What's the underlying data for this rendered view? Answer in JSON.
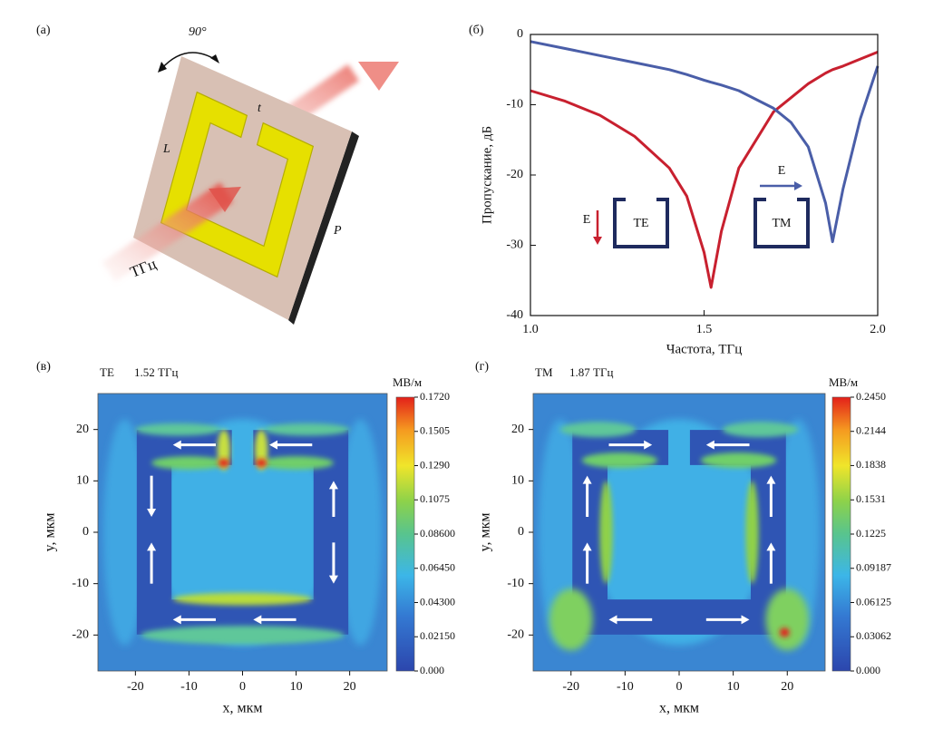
{
  "diagram": {
    "label": "(а)",
    "angle": "90°",
    "length_label": "L",
    "gap_label": "t",
    "period_label": "P",
    "source_label": "ТГц"
  },
  "chart_data": [
    {
      "type": "line",
      "label": "(б)",
      "x": [
        1.0,
        1.1,
        1.2,
        1.3,
        1.4,
        1.45,
        1.5,
        1.52,
        1.55,
        1.6,
        1.7,
        1.75,
        1.8,
        1.85,
        1.87,
        1.9,
        1.95,
        2.0
      ],
      "series": [
        {
          "name": "TE",
          "color": "#c8202f",
          "values": [
            -8,
            -9.5,
            -11.5,
            -14.5,
            -19,
            -23,
            -31,
            -36,
            -28,
            -19,
            -11,
            -9,
            -7,
            -5.5,
            -5,
            -4.5,
            -3.5,
            -2.5
          ]
        },
        {
          "name": "TM",
          "color": "#4a5ea8",
          "values": [
            -1,
            -2,
            -3,
            -4,
            -5,
            -5.7,
            -6.5,
            -6.8,
            -7.2,
            -8,
            -10.5,
            -12.5,
            -16,
            -24,
            -29.5,
            -22,
            -12,
            -4.5
          ]
        }
      ],
      "xlim": [
        1,
        2
      ],
      "ylim": [
        -40,
        0
      ],
      "xticks": [
        {
          "value": 1,
          "label": "1.0"
        },
        {
          "value": 1.5,
          "label": "1.5"
        },
        {
          "value": 2,
          "label": "2.0"
        }
      ],
      "yticks": [
        0,
        -10,
        -20,
        -30,
        -40
      ],
      "xlabel": "Частота, ТГц",
      "ylabel": "Пропускание, дБ",
      "field_label": "E"
    },
    {
      "type": "heatmap",
      "label": "(в)",
      "mode": "TE",
      "frequency": "1.52 ТГц",
      "unit": "МВ/м",
      "xlim": [
        -27,
        27
      ],
      "ylim": [
        -27,
        27
      ],
      "xticks": [
        -20,
        -10,
        0,
        10,
        20
      ],
      "yticks": [
        -20,
        -10,
        0,
        10,
        20
      ],
      "xlabel": "x, мкм",
      "ylabel": "y, мкм",
      "zlim": [
        0,
        0.172
      ],
      "zticks": [
        {
          "value": 0,
          "label": "0.000"
        },
        {
          "value": 0.0215,
          "label": "0.02150"
        },
        {
          "value": 0.043,
          "label": "0.04300"
        },
        {
          "value": 0.0645,
          "label": "0.06450"
        },
        {
          "value": 0.086,
          "label": "0.08600"
        },
        {
          "value": 0.1075,
          "label": "0.1075"
        },
        {
          "value": 0.129,
          "label": "0.1290"
        },
        {
          "value": 0.1505,
          "label": "0.1505"
        },
        {
          "value": 0.172,
          "label": "0.1720"
        }
      ]
    },
    {
      "type": "heatmap",
      "label": "(г)",
      "mode": "TM",
      "frequency": "1.87 ТГц",
      "unit": "МВ/м",
      "xlim": [
        -27,
        27
      ],
      "ylim": [
        -27,
        27
      ],
      "xticks": [
        -20,
        -10,
        0,
        10,
        20
      ],
      "yticks": [
        -20,
        -10,
        0,
        10,
        20
      ],
      "xlabel": "x, мкм",
      "ylabel": "y, мкм",
      "zlim": [
        0,
        0.245
      ],
      "zticks": [
        {
          "value": 0,
          "label": "0.000"
        },
        {
          "value": 0.03062,
          "label": "0.03062"
        },
        {
          "value": 0.06125,
          "label": "0.06125"
        },
        {
          "value": 0.09187,
          "label": "0.09187"
        },
        {
          "value": 0.1225,
          "label": "0.1225"
        },
        {
          "value": 0.1531,
          "label": "0.1531"
        },
        {
          "value": 0.1838,
          "label": "0.1838"
        },
        {
          "value": 0.2144,
          "label": "0.2144"
        },
        {
          "value": 0.245,
          "label": "0.2450"
        }
      ]
    }
  ]
}
